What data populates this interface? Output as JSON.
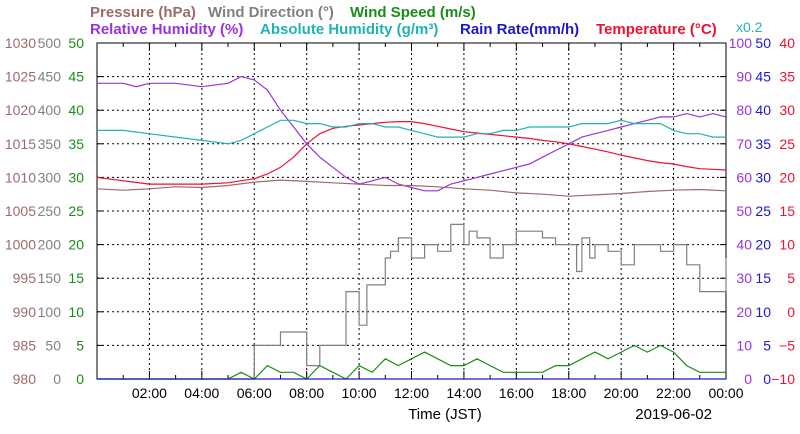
{
  "chart_data": {
    "type": "line",
    "date": "2019-06-02",
    "xlabel": "Time (JST)",
    "x_ticks": [
      "02:00",
      "04:00",
      "06:00",
      "08:00",
      "10:00",
      "12:00",
      "14:00",
      "16:00",
      "18:00",
      "20:00",
      "22:00",
      "00:00"
    ],
    "legend_rows": [
      [
        {
          "text": "Pressure (hPa)",
          "color": "#9c6b6b"
        },
        {
          "text": "Wind Direction (°)",
          "color": "#808080"
        },
        {
          "text": "Wind Speed (m/s)",
          "color": "#1a8c1a"
        }
      ],
      [
        {
          "text": "Relative Humidity (%)",
          "color": "#9933dd"
        },
        {
          "text": "Absolute Humidity (g/m³)",
          "color": "#22b2b2"
        },
        {
          "text": "Rain Rate(mm/h)",
          "color": "#1a1acc"
        },
        {
          "text": "Temperature (°C)",
          "color": "#ee1133"
        }
      ]
    ],
    "rain_scale_note": "x0.2",
    "axes": {
      "pressure": {
        "color": "#9c6b6b",
        "ticks": [
          "980",
          "985",
          "990",
          "995",
          "1000",
          "1005",
          "1010",
          "1015",
          "1020",
          "1025",
          "1030"
        ],
        "range": [
          980,
          1030
        ]
      },
      "wind_direction": {
        "color": "#808080",
        "ticks": [
          "0",
          "50",
          "100",
          "150",
          "200",
          "250",
          "300",
          "350",
          "400",
          "450",
          "500"
        ],
        "range": [
          0,
          500
        ]
      },
      "wind_speed": {
        "color": "#1a8c1a",
        "ticks": [
          "0",
          "5",
          "10",
          "15",
          "20",
          "25",
          "30",
          "35",
          "40",
          "45",
          "50"
        ],
        "range": [
          0,
          50
        ]
      },
      "humidity": {
        "color": "#9933dd",
        "ticks": [
          "0",
          "10",
          "20",
          "30",
          "40",
          "50",
          "60",
          "70",
          "80",
          "90",
          "100"
        ],
        "range": [
          0,
          100
        ]
      },
      "rain": {
        "color": "#1a1acc",
        "ticks": [
          "0",
          "5",
          "10",
          "15",
          "20",
          "25",
          "30",
          "35",
          "40",
          "45",
          "50"
        ],
        "range": [
          0,
          50
        ]
      },
      "temperature": {
        "color": "#ee1133",
        "ticks": [
          "−10",
          "−5",
          "0",
          "5",
          "10",
          "15",
          "20",
          "25",
          "30",
          "35",
          "40"
        ],
        "range": [
          -10,
          40
        ]
      }
    },
    "x_range_hours": [
      0,
      24
    ],
    "series": [
      {
        "name": "Temperature (°C)",
        "color": "#ee1133",
        "axis": "temperature",
        "x": [
          0,
          1,
          2,
          3,
          4,
          5,
          6,
          6.5,
          7,
          7.5,
          8,
          8.5,
          9,
          9.5,
          10,
          10.5,
          11,
          11.5,
          12,
          12.5,
          13,
          13.5,
          14,
          14.5,
          15,
          15.5,
          16,
          16.5,
          17,
          17.5,
          18,
          18.5,
          19,
          19.5,
          20,
          20.5,
          21,
          21.5,
          22,
          22.5,
          23,
          23.5,
          24
        ],
        "y": [
          20,
          19.5,
          19,
          19,
          19,
          19.2,
          19.8,
          20.5,
          21.5,
          23,
          25,
          26.5,
          27.3,
          27.6,
          27.8,
          28,
          28.2,
          28.3,
          28.3,
          28,
          27.6,
          27.2,
          26.8,
          26.6,
          26.4,
          26.2,
          26,
          25.8,
          25.5,
          25.3,
          25,
          24.6,
          24.2,
          23.8,
          23.3,
          22.9,
          22.5,
          22.2,
          22,
          21.6,
          21.3,
          21.2,
          21.1
        ]
      },
      {
        "name": "Relative Humidity (%)",
        "color": "#9933dd",
        "axis": "humidity",
        "x": [
          0,
          1,
          1.5,
          2,
          3,
          4,
          5,
          5.5,
          6,
          6.5,
          7,
          7.5,
          8,
          8.5,
          9,
          9.5,
          10,
          10.5,
          11,
          11.5,
          12,
          12.5,
          13,
          13.5,
          14,
          14.5,
          15,
          15.5,
          16,
          16.5,
          17,
          17.5,
          18,
          18.5,
          19,
          19.5,
          20,
          20.5,
          21,
          21.5,
          22,
          22.5,
          23,
          23.5,
          24
        ],
        "y": [
          88,
          88,
          87,
          88,
          88,
          87,
          88,
          90,
          89,
          86,
          80,
          75,
          70,
          66,
          63,
          60,
          58,
          59,
          60,
          58,
          57,
          56,
          56,
          58,
          59,
          60,
          61,
          62,
          63,
          64,
          66,
          68,
          70,
          72,
          73,
          74,
          75,
          76,
          77,
          78,
          78,
          79,
          78,
          79,
          78
        ]
      },
      {
        "name": "Absolute Humidity (g/m³)",
        "color": "#22b2b2",
        "axis": "humidity",
        "x": [
          0,
          1,
          2,
          3,
          4,
          5,
          5.5,
          6,
          6.5,
          7,
          7.5,
          8,
          8.5,
          9,
          9.5,
          10,
          10.5,
          11,
          11.5,
          12,
          12.5,
          13,
          13.5,
          14,
          14.5,
          15,
          15.5,
          16,
          16.5,
          17,
          17.5,
          18,
          18.5,
          19,
          19.5,
          20,
          20.5,
          21,
          21.5,
          22,
          22.5,
          23,
          23.5,
          24
        ],
        "y": [
          74,
          74,
          73,
          72,
          71,
          70,
          71,
          73,
          75,
          77,
          77,
          76,
          76,
          75,
          75,
          76,
          76,
          75,
          75,
          74,
          73,
          72,
          72,
          72,
          73,
          73,
          74,
          74,
          75,
          75,
          75,
          75,
          76,
          76,
          76,
          77,
          76,
          76,
          76,
          74,
          73,
          73,
          72,
          72
        ]
      },
      {
        "name": "Pressure (hPa)",
        "color": "#9c6b6b",
        "axis": "pressure",
        "x": [
          0,
          1,
          2,
          3,
          4,
          5,
          6,
          7,
          8,
          9,
          10,
          11,
          12,
          13,
          14,
          15,
          16,
          17,
          18,
          19,
          20,
          21,
          22,
          23,
          24
        ],
        "y": [
          1008.3,
          1008.1,
          1008.3,
          1008.6,
          1008.5,
          1008.8,
          1009.3,
          1009.6,
          1009.4,
          1009.2,
          1009.0,
          1008.8,
          1008.8,
          1008.6,
          1008.3,
          1008.1,
          1007.7,
          1007.5,
          1007.2,
          1007.4,
          1007.6,
          1007.9,
          1008.1,
          1008.2,
          1008.0
        ]
      },
      {
        "name": "Wind Direction (°)",
        "color": "#808080",
        "axis": "wind_direction",
        "step": true,
        "x": [
          0,
          5.6,
          6,
          6.8,
          7,
          7.7,
          8,
          8.2,
          8.5,
          9.2,
          9.5,
          10,
          10.3,
          11,
          11.2,
          11.5,
          12,
          12.5,
          13,
          13.5,
          14,
          14.2,
          14.5,
          15,
          15.5,
          16,
          17,
          17.5,
          18,
          18.3,
          18.5,
          18.8,
          19,
          19.5,
          20,
          20.5,
          21,
          21.5,
          22,
          22.5,
          23,
          23.5,
          24
        ],
        "y": [
          0,
          0,
          50,
          50,
          70,
          70,
          20,
          20,
          50,
          50,
          130,
          80,
          140,
          180,
          190,
          210,
          180,
          200,
          190,
          230,
          200,
          220,
          210,
          180,
          200,
          220,
          210,
          200,
          200,
          160,
          210,
          180,
          200,
          190,
          170,
          200,
          200,
          190,
          200,
          170,
          130,
          130,
          180
        ]
      },
      {
        "name": "Wind Speed (m/s)",
        "color": "#1a8c1a",
        "axis": "wind_speed",
        "x": [
          0,
          1,
          2,
          3,
          4,
          5,
          5.5,
          6,
          6.5,
          7,
          7.5,
          8,
          8.5,
          9,
          9.5,
          10,
          10.5,
          11,
          11.5,
          12,
          12.5,
          13,
          13.5,
          14,
          14.5,
          15,
          15.5,
          16,
          16.5,
          17,
          17.5,
          18,
          18.5,
          19,
          19.5,
          20,
          20.5,
          21,
          21.5,
          22,
          22.5,
          23,
          23.5,
          24
        ],
        "y": [
          0,
          0,
          0,
          0,
          0,
          0,
          1,
          0,
          2,
          1,
          1,
          0,
          2,
          1,
          0,
          2,
          1,
          3,
          2,
          3,
          4,
          3,
          2,
          2,
          3,
          2,
          1,
          1,
          1,
          1,
          2,
          2,
          3,
          4,
          3,
          4,
          5,
          4,
          5,
          4,
          2,
          1,
          1,
          1
        ]
      },
      {
        "name": "Rain Rate(mm/h)",
        "color": "#1a1acc",
        "axis": "rain",
        "x": [
          0,
          24
        ],
        "y": [
          0,
          0
        ]
      }
    ]
  }
}
